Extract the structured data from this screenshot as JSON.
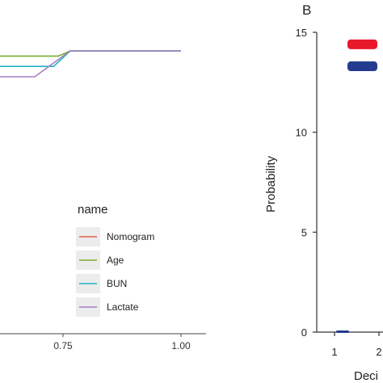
{
  "chart_data": [
    {
      "type": "line",
      "xlim": [
        0.5,
        1.0
      ],
      "x_ticks": [
        "0.75",
        "1.00"
      ],
      "x_tick_values": [
        0.75,
        1.0
      ],
      "legend": {
        "title": "name",
        "placement": "right",
        "entries": [
          {
            "name": "Nomogram",
            "color": "#e8604c"
          },
          {
            "name": "Age",
            "color": "#7cae2b"
          },
          {
            "name": "BUN",
            "color": "#1fb3c2"
          },
          {
            "name": "Lactate",
            "color": "#a47cc4"
          }
        ]
      },
      "series": [
        {
          "name": "Age",
          "color": "#7cae2b",
          "x": [
            0.5,
            0.74,
            0.765,
            1.0
          ],
          "y": [
            0.84,
            0.84,
            0.86,
            0.86
          ]
        },
        {
          "name": "BUN",
          "color": "#1fb3c2",
          "x": [
            0.5,
            0.73,
            0.765,
            1.0
          ],
          "y": [
            0.8,
            0.8,
            0.86,
            0.86
          ]
        },
        {
          "name": "Lactate",
          "color": "#a47cc4",
          "x": [
            0.5,
            0.69,
            0.765,
            1.0
          ],
          "y": [
            0.76,
            0.76,
            0.86,
            0.86
          ]
        }
      ]
    },
    {
      "type": "bar",
      "panel_label": "B",
      "ylabel": "Probability",
      "xlabel": "Deci",
      "ylim": [
        0,
        15
      ],
      "y_ticks": [
        "0",
        "5",
        "10",
        "15"
      ],
      "y_tick_values": [
        0,
        5,
        10,
        15
      ],
      "x_ticks": [
        "1",
        "2"
      ],
      "markers": [
        {
          "y": 14.4,
          "color": "#e8192c"
        },
        {
          "y": 13.3,
          "color": "#243c8f"
        }
      ],
      "base_marks": [
        {
          "category": "1",
          "y": 0,
          "color": "#243c8f"
        }
      ]
    }
  ]
}
